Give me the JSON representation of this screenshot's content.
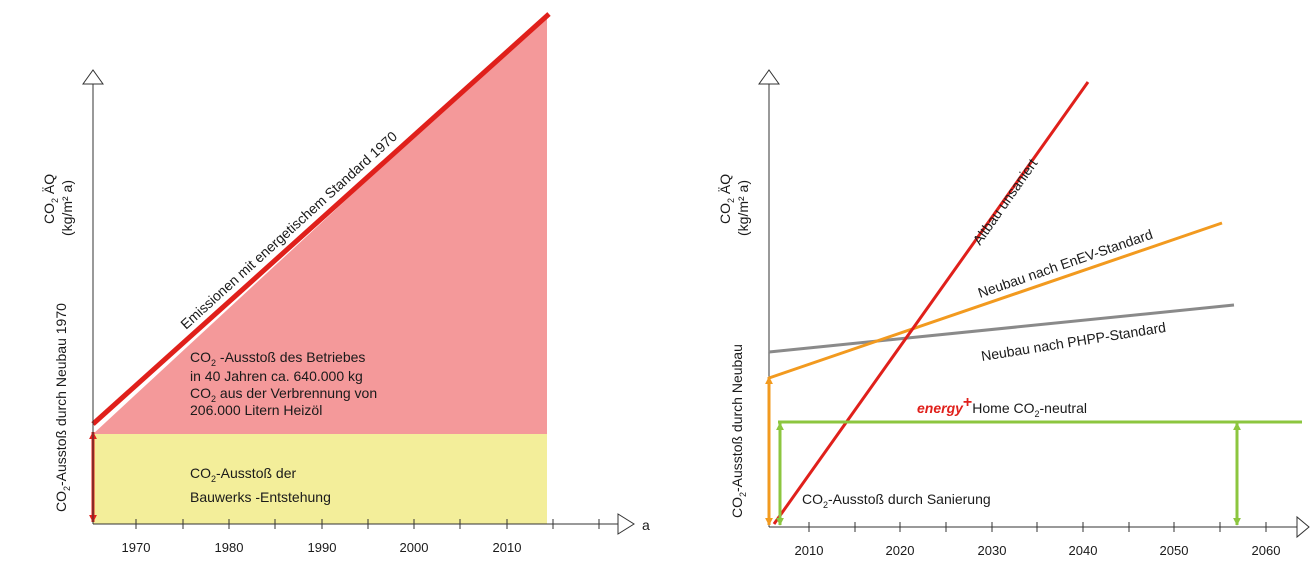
{
  "chart_data": [
    {
      "type": "area",
      "y_axis_label_line1": "CO",
      "y_axis_label_sub": "2",
      "y_axis_label_line1_tail": " ÄQ",
      "y_axis_label_line2": "(kg/m² a)",
      "x_axis_unit": "a",
      "x_ticks": [
        "1970",
        "1980",
        "1990",
        "2000",
        "2010"
      ],
      "line_label": "Emissionen mit energetischem Standard  1970",
      "operation_text": {
        "l1_pre": "CO",
        "l1_sub": "2",
        "l1_post": " -Ausstoß des Betriebes",
        "l2": "in 40 Jahren ca. 640.000 kg",
        "l3_pre": "CO",
        "l3_sub": "2",
        "l3_post": " aus der Verbrennung von",
        "l4": "206.000 Litern Heizöl"
      },
      "construction_text": {
        "l1_pre": "CO",
        "l1_sub": "2",
        "l1_post": "-Ausstoß der",
        "l2": "Bauwerks -Entstehung"
      },
      "side_label_pre": "CO",
      "side_label_sub": "2",
      "side_label_post": "-Ausstoß durch Neubau 1970",
      "series": [
        {
          "label": "emissions_line",
          "x": [
            1964,
            2015
          ],
          "y": [
            0.2,
            1.0
          ]
        },
        {
          "label": "construction_base",
          "x": [
            1964,
            2015
          ],
          "y": [
            0.2,
            0.2
          ]
        }
      ],
      "colors": {
        "line": "#e0201b",
        "operation_fill": "#f4999a",
        "construction_fill": "#f3ee9a"
      }
    },
    {
      "type": "line",
      "y_axis_label_line1": "CO",
      "y_axis_label_sub": "2",
      "y_axis_label_line1_tail": " ÄQ",
      "y_axis_label_line2": "(kg/m² a)",
      "x_ticks": [
        "2010",
        "2020",
        "2030",
        "2040",
        "2050",
        "2060"
      ],
      "x_range": [
        2005,
        2064
      ],
      "side_label_pre": "CO",
      "side_label_sub": "2",
      "side_label_post": "-Ausstoß durch Neubau",
      "series": [
        {
          "name": "Altbau unsaniert",
          "color": "#e0201b",
          "x": [
            2006,
            2043
          ],
          "y": [
            0,
            1.0
          ]
        },
        {
          "name": "Neubau nach EnEV-Standard",
          "color": "#f29a1f",
          "x": [
            2005,
            2056
          ],
          "y": [
            0.44,
            0.8
          ]
        },
        {
          "name": "Neubau nach PHPP-Standard",
          "color": "#8a8a8a",
          "x": [
            2005,
            2057
          ],
          "y": [
            0.47,
            0.6
          ]
        },
        {
          "name_pre": "energy",
          "name_sup": "+",
          "name_post": "Home  CO",
          "name_sub": "2",
          "name_tail": "-neutral",
          "color": "#8cc63f",
          "x": [
            2006,
            2064
          ],
          "y": [
            0.24,
            0.24
          ]
        }
      ],
      "sanierung_pre": "CO",
      "sanierung_sub": "2",
      "sanierung_post": "-Ausstoß durch Sanierung"
    }
  ]
}
